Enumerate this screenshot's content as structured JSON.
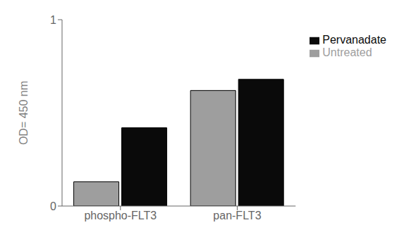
{
  "chart_data": {
    "type": "bar",
    "categories": [
      "phospho-FLT3",
      "pan-FLT3"
    ],
    "series": [
      {
        "name": "Untreated",
        "color": "#9e9e9e",
        "values": [
          0.13,
          0.62
        ]
      },
      {
        "name": "Pervanadate",
        "color": "#0a0a0a",
        "values": [
          0.42,
          0.68
        ]
      }
    ],
    "ylabel": "OD= 450 nm",
    "ylim": [
      0,
      1
    ],
    "yticks": [
      0,
      1
    ],
    "grid": false,
    "legend": "right"
  }
}
